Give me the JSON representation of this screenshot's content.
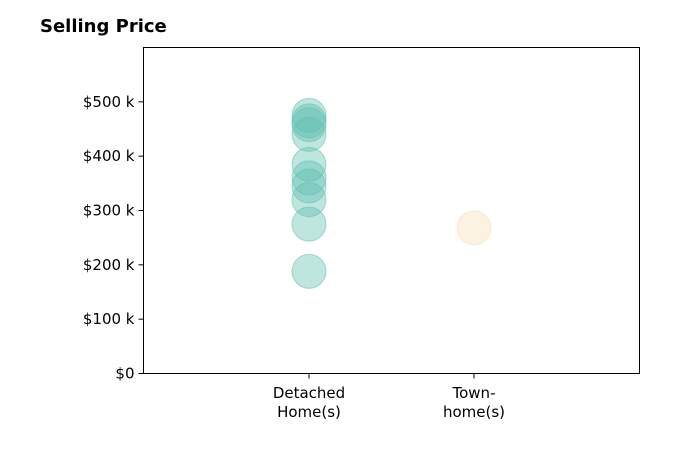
{
  "chart_data": {
    "type": "scatter",
    "title": "Selling Price",
    "xlabel": "",
    "ylabel": "",
    "categories": [
      {
        "lines": [
          "Detached",
          "Home(s)"
        ],
        "color": "#5fbfb0"
      },
      {
        "lines": [
          "Town-",
          "home(s)"
        ],
        "color": "#f5deb3"
      }
    ],
    "points": [
      {
        "category": 0,
        "value": 475000
      },
      {
        "category": 0,
        "value": 465000
      },
      {
        "category": 0,
        "value": 458000
      },
      {
        "category": 0,
        "value": 440000
      },
      {
        "category": 0,
        "value": 385000
      },
      {
        "category": 0,
        "value": 360000
      },
      {
        "category": 0,
        "value": 345000
      },
      {
        "category": 0,
        "value": 320000
      },
      {
        "category": 0,
        "value": 275000
      },
      {
        "category": 0,
        "value": 188000
      },
      {
        "category": 1,
        "value": 268000
      }
    ],
    "ylim": [
      0,
      600000
    ],
    "yticks": [
      {
        "value": 0,
        "label": "$0"
      },
      {
        "value": 100000,
        "label": "$100 k"
      },
      {
        "value": 200000,
        "label": "$200 k"
      },
      {
        "value": 300000,
        "label": "$300 k"
      },
      {
        "value": 400000,
        "label": "$400 k"
      },
      {
        "value": 500000,
        "label": "$500 k"
      }
    ],
    "grid": false,
    "legend": "none"
  }
}
